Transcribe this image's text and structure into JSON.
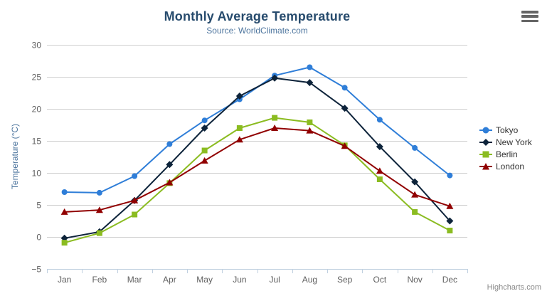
{
  "header": {
    "title": "Monthly Average Temperature",
    "subtitle": "Source: WorldClimate.com"
  },
  "credits": {
    "label": "Highcharts.com"
  },
  "export_menu": {
    "icon": "hamburger-menu-icon"
  },
  "chart_data": {
    "type": "line",
    "title": "Monthly Average Temperature",
    "subtitle": "Source: WorldClimate.com",
    "categories": [
      "Jan",
      "Feb",
      "Mar",
      "Apr",
      "May",
      "Jun",
      "Jul",
      "Aug",
      "Sep",
      "Oct",
      "Nov",
      "Dec"
    ],
    "xlabel": "",
    "ylabel": "Temperature (°C)",
    "ylim": [
      -5,
      30
    ],
    "ytick_interval": 5,
    "grid": true,
    "legend_position": "right",
    "series": [
      {
        "name": "Tokyo",
        "color": "#2f7ed8",
        "marker": "circle",
        "values": [
          7.0,
          6.9,
          9.5,
          14.5,
          18.2,
          21.5,
          25.2,
          26.5,
          23.3,
          18.3,
          13.9,
          9.6
        ]
      },
      {
        "name": "New York",
        "color": "#0d233a",
        "marker": "diamond",
        "values": [
          -0.2,
          0.8,
          5.7,
          11.3,
          17.0,
          22.0,
          24.8,
          24.1,
          20.1,
          14.1,
          8.6,
          2.5
        ]
      },
      {
        "name": "Berlin",
        "color": "#8bbc21",
        "marker": "square",
        "values": [
          -0.9,
          0.6,
          3.5,
          8.4,
          13.5,
          17.0,
          18.6,
          17.9,
          14.3,
          9.0,
          3.9,
          1.0
        ]
      },
      {
        "name": "London",
        "color": "#910000",
        "marker": "triangle",
        "values": [
          3.9,
          4.2,
          5.7,
          8.5,
          11.9,
          15.2,
          17.0,
          16.6,
          14.2,
          10.3,
          6.6,
          4.8
        ]
      }
    ]
  },
  "colors": {
    "title": "#274b6d",
    "subtitle": "#4d759e",
    "axis_title": "#4d759e",
    "axis_labels": "#606060",
    "gridline": "#d0d0d0",
    "axis_line": "#c0d0e0",
    "legend_text": "#333333",
    "credits": "#8a8a8a"
  }
}
